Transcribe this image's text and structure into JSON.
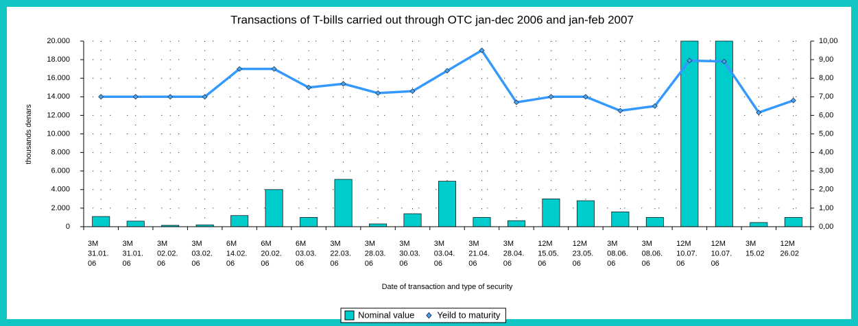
{
  "chart_data": {
    "type": "bar_line",
    "title": "Transactions of T-bills carried out through OTC jan-dec 2006 and jan-feb 2007",
    "y_label": "thousands denars",
    "x_label": "Date of transaction and type of security",
    "categories": [
      [
        "3M",
        "31.01.",
        "06"
      ],
      [
        "3M",
        "31.01.",
        "06"
      ],
      [
        "3M",
        "02.02.",
        "06"
      ],
      [
        "3M",
        "03.02.",
        "06"
      ],
      [
        "6M",
        "14.02.",
        "06"
      ],
      [
        "6M",
        "20.02.",
        "06"
      ],
      [
        "6M",
        "03.03.",
        "06"
      ],
      [
        "3M",
        "22.03.",
        "06"
      ],
      [
        "3M",
        "28.03.",
        "06"
      ],
      [
        "3M",
        "30.03.",
        "06"
      ],
      [
        "3M",
        "03.04.",
        "06"
      ],
      [
        "3M",
        "21.04.",
        "06"
      ],
      [
        "3M",
        "28.04.",
        "06"
      ],
      [
        "12M",
        "15.05.",
        "06"
      ],
      [
        "12M",
        "23.05.",
        "06"
      ],
      [
        "3M",
        "08.06.",
        "06"
      ],
      [
        "3M",
        "08.06.",
        "06"
      ],
      [
        "12M",
        "10.07.",
        "06"
      ],
      [
        "12M",
        "10.07.",
        "06"
      ],
      [
        "3M",
        "15.02"
      ],
      [
        "12M",
        "26.02"
      ]
    ],
    "series": [
      {
        "name": "Nominal value",
        "type": "bar",
        "color": "#00cccc",
        "values": [
          1100,
          600,
          150,
          200,
          1200,
          4000,
          1000,
          5100,
          300,
          1400,
          4900,
          1000,
          650,
          3000,
          2800,
          1600,
          1000,
          20000,
          20000,
          450,
          1000
        ]
      },
      {
        "name": "Yeild to maturity",
        "type": "line",
        "axis": "y2",
        "color": "#3399ff",
        "values": [
          7,
          7,
          7,
          7,
          8.5,
          8.5,
          7.5,
          7.7,
          7.2,
          7.3,
          8.4,
          9.5,
          6.7,
          7,
          7,
          6.25,
          6.5,
          8.95,
          8.9,
          6.15,
          6.8
        ]
      }
    ],
    "ylim": [
      0,
      20000
    ],
    "yticks": [
      0,
      {
        "value": 2000,
        "label": "2.000"
      },
      {
        "value": 4000,
        "label": "4.000"
      },
      {
        "value": 6000,
        "label": "6.000"
      },
      {
        "value": 8000,
        "label": "8.000"
      },
      {
        "value": 10000,
        "label": "10.000"
      },
      {
        "value": 12000,
        "label": "12.000"
      },
      {
        "value": 14000,
        "label": "14.000"
      },
      {
        "value": 16000,
        "label": "16.000"
      },
      {
        "value": 18000,
        "label": "18.000"
      },
      {
        "value": 20000,
        "label": "20.000"
      }
    ],
    "y2lim": [
      0,
      10
    ],
    "y2ticks": [
      {
        "value": 0,
        "label": "0,00"
      },
      {
        "value": 1,
        "label": "1,00"
      },
      {
        "value": 2,
        "label": "2,00"
      },
      {
        "value": 3,
        "label": "3,00"
      },
      {
        "value": 4,
        "label": "4,00"
      },
      {
        "value": 5,
        "label": "5,00"
      },
      {
        "value": 6,
        "label": "6,00"
      },
      {
        "value": 7,
        "label": "7,00"
      },
      {
        "value": 8,
        "label": "8,00"
      },
      {
        "value": 9,
        "label": "9,00"
      },
      {
        "value": 10,
        "label": "10,00"
      }
    ],
    "grid": true,
    "legend": "bottom"
  }
}
